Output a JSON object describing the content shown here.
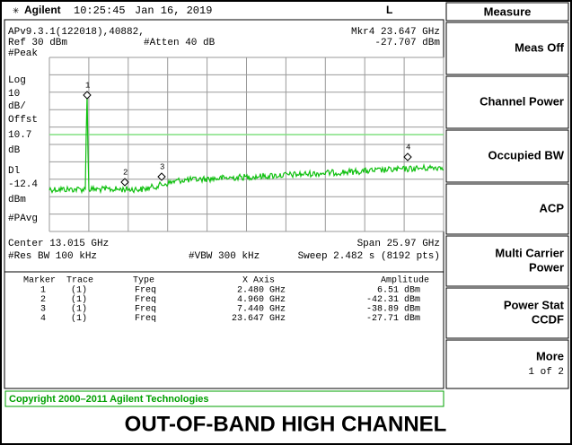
{
  "header": {
    "brand": "Agilent",
    "time": "10:25:45",
    "date": "Jan 16, 2019",
    "mode": "L"
  },
  "menu": {
    "title": "Measure",
    "keys": [
      {
        "lines": [
          "Meas Off"
        ]
      },
      {
        "lines": [
          "Channel Power"
        ]
      },
      {
        "lines": [
          "Occupied BW"
        ]
      },
      {
        "lines": [
          "ACP"
        ]
      },
      {
        "lines": [
          "Multi Carrier",
          "Power"
        ]
      },
      {
        "lines": [
          "Power Stat",
          "CCDF"
        ]
      },
      {
        "lines": [
          "More"
        ],
        "sub": "1 of 2"
      }
    ]
  },
  "screen": {
    "info": "APv9.3.1(122018),40882,",
    "marker_readout": "Mkr4 23.647 GHz",
    "ref": "Ref 30 dBm",
    "atten": "#Atten 40 dB",
    "marker_amplitude": "-27.707 dBm",
    "left_labels": [
      "#Peak",
      "Log",
      "10",
      "dB/",
      "Offst",
      "10.7",
      "dB",
      "Dl",
      "-12.4",
      "dBm",
      "#PAvg"
    ],
    "center": "Center 13.015 GHz",
    "span": "Span 25.97 GHz",
    "res_bw": "#Res BW 100 kHz",
    "vbw": "#VBW 300 kHz",
    "sweep": "Sweep 2.482 s (8192 pts)",
    "marker_labels": [
      "1",
      "2",
      "3",
      "4"
    ]
  },
  "table": {
    "columns": [
      "Marker",
      "Trace",
      "Type",
      "X Axis",
      "Amplitude"
    ],
    "rows": [
      [
        "1",
        "(1)",
        "Freq",
        "2.480 GHz",
        "6.51 dBm"
      ],
      [
        "2",
        "(1)",
        "Freq",
        "4.960 GHz",
        "-42.31 dBm"
      ],
      [
        "3",
        "(1)",
        "Freq",
        "7.440 GHz",
        "-38.89 dBm"
      ],
      [
        "4",
        "(1)",
        "Freq",
        "23.647 GHz",
        "-27.71 dBm"
      ]
    ]
  },
  "footer": {
    "copyright": "Copyright 2000–2011 Agilent Technologies",
    "caption": "OUT-OF-BAND HIGH CHANNEL"
  }
}
